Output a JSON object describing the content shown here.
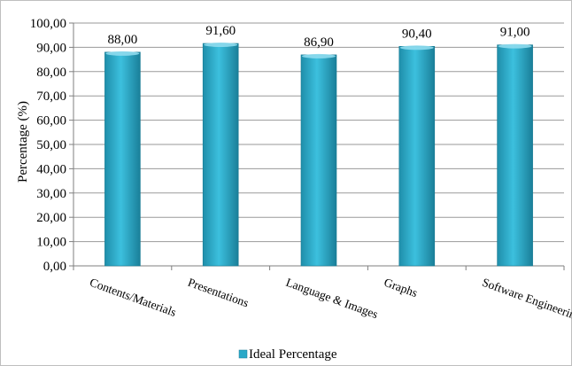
{
  "chart_data": {
    "type": "bar",
    "categories": [
      "Contents/Materials",
      "Presentations",
      "Language & Images",
      "Graphs",
      "Software Engineering"
    ],
    "series": [
      {
        "name": "Ideal Percentage",
        "values": [
          88.0,
          91.6,
          86.9,
          90.4,
          91.0
        ]
      }
    ],
    "data_labels": [
      "88,00",
      "91,60",
      "86,90",
      "90,40",
      "91,00"
    ],
    "xlabel": "",
    "ylabel": "Percentage (%)",
    "ylim": [
      0,
      100
    ],
    "yticks": [
      0,
      10,
      20,
      30,
      40,
      50,
      60,
      70,
      80,
      90,
      100
    ],
    "ytick_labels": [
      "0,00",
      "10,00",
      "20,00",
      "30,00",
      "40,00",
      "50,00",
      "60,00",
      "70,00",
      "80,00",
      "90,00",
      "100,00"
    ],
    "grid": true,
    "legend": "bottom",
    "colors": {
      "bar": "#2aa8c8",
      "bar_top": "#8fdcee",
      "grid": "#9a9a9a"
    }
  }
}
